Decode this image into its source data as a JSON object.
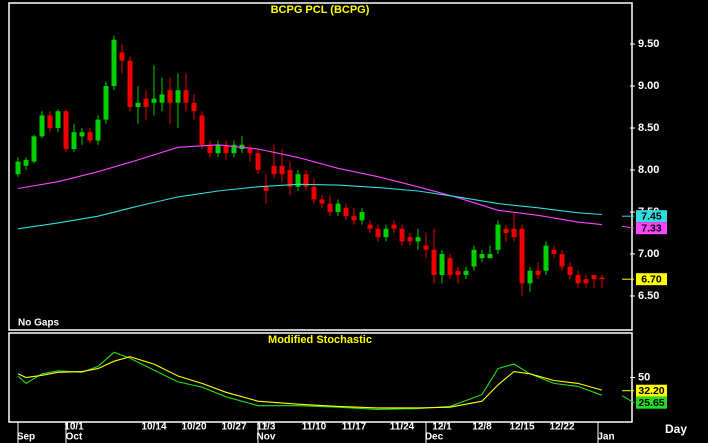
{
  "chart_data": [
    {
      "type": "candlestick",
      "title": "BCPG PCL (BCPG)",
      "note": "No Gaps",
      "x_label": "Day",
      "up_color": "#00d000",
      "down_color": "#ee0000",
      "open": [
        7.95,
        8.05,
        8.1,
        8.4,
        8.65,
        8.5,
        8.7,
        8.25,
        8.4,
        8.45,
        8.35,
        8.6,
        9.0,
        9.4,
        9.3,
        8.75,
        8.85,
        8.8,
        8.8,
        8.95,
        8.8,
        8.95,
        8.8,
        8.65,
        8.3,
        8.2,
        8.3,
        8.2,
        8.25,
        8.25,
        8.2,
        7.8,
        8.05,
        8.05,
        8.0,
        7.8,
        7.95,
        7.8,
        7.65,
        7.6,
        7.5,
        7.55,
        7.45,
        7.4,
        7.35,
        7.3,
        7.2,
        7.35,
        7.3,
        7.2,
        7.15,
        7.1,
        7.05,
        6.75,
        6.95,
        6.8,
        6.75,
        6.85,
        6.95,
        6.95,
        7.05,
        7.3,
        7.3,
        7.3,
        6.65,
        6.8,
        6.8,
        7.05,
        7.0,
        6.85,
        6.75,
        6.7,
        6.75,
        6.72
      ],
      "high": [
        8.15,
        8.15,
        8.42,
        8.7,
        8.7,
        8.72,
        8.72,
        8.55,
        8.5,
        8.5,
        8.65,
        9.05,
        9.6,
        9.5,
        9.35,
        9.0,
        8.95,
        9.25,
        9.1,
        9.1,
        9.15,
        9.15,
        8.9,
        8.7,
        8.35,
        8.35,
        8.35,
        8.35,
        8.4,
        8.3,
        8.25,
        7.95,
        8.3,
        8.25,
        8.1,
        8.0,
        8.0,
        7.9,
        7.7,
        7.7,
        7.65,
        7.6,
        7.55,
        7.55,
        7.4,
        7.35,
        7.35,
        7.4,
        7.35,
        7.25,
        7.3,
        7.25,
        7.3,
        7.05,
        7.0,
        6.85,
        6.85,
        7.1,
        7.05,
        7.1,
        7.4,
        7.35,
        7.5,
        7.35,
        6.85,
        6.9,
        7.15,
        7.1,
        7.05,
        6.9,
        6.8,
        6.75,
        6.75,
        6.75
      ],
      "low": [
        7.92,
        8.0,
        8.08,
        8.38,
        8.45,
        8.45,
        8.22,
        8.22,
        8.3,
        8.32,
        8.3,
        8.55,
        8.95,
        9.15,
        8.7,
        8.55,
        8.6,
        8.65,
        8.7,
        8.55,
        8.5,
        8.7,
        8.6,
        8.25,
        8.15,
        8.15,
        8.12,
        8.15,
        8.2,
        8.1,
        7.95,
        7.6,
        7.9,
        7.85,
        7.7,
        7.75,
        7.75,
        7.6,
        7.55,
        7.45,
        7.45,
        7.4,
        7.35,
        7.35,
        7.25,
        7.15,
        7.15,
        7.25,
        7.1,
        7.1,
        7.05,
        6.95,
        6.65,
        6.65,
        6.7,
        6.65,
        6.7,
        6.8,
        6.9,
        6.95,
        7.0,
        7.15,
        7.15,
        6.5,
        6.55,
        6.7,
        6.75,
        6.95,
        6.8,
        6.7,
        6.6,
        6.6,
        6.6,
        6.6
      ],
      "close": [
        8.1,
        8.12,
        8.4,
        8.65,
        8.5,
        8.7,
        8.25,
        8.45,
        8.45,
        8.35,
        8.6,
        9.0,
        9.55,
        9.3,
        8.75,
        8.8,
        8.75,
        8.85,
        8.9,
        8.8,
        8.95,
        8.8,
        8.7,
        8.3,
        8.2,
        8.3,
        8.2,
        8.3,
        8.3,
        8.2,
        8.0,
        7.75,
        7.95,
        7.95,
        7.8,
        7.95,
        7.8,
        7.65,
        7.6,
        7.5,
        7.6,
        7.45,
        7.4,
        7.5,
        7.3,
        7.2,
        7.3,
        7.3,
        7.15,
        7.15,
        7.2,
        7.05,
        6.75,
        7.0,
        6.75,
        6.75,
        6.8,
        7.05,
        7.0,
        7.0,
        7.35,
        7.25,
        7.2,
        6.65,
        6.8,
        6.75,
        7.1,
        7.0,
        6.85,
        6.75,
        6.65,
        6.65,
        6.7,
        6.7
      ],
      "close_label": {
        "value": 6.7,
        "label": "6.70"
      },
      "close_label_color": "#ffff00",
      "series": [
        {
          "color": "#ff44ff",
          "x": [
            0,
            5,
            10,
            15,
            20,
            25,
            30,
            35,
            40,
            45,
            50,
            55,
            60,
            65,
            70,
            73
          ],
          "values": [
            7.78,
            7.86,
            7.98,
            8.12,
            8.27,
            8.3,
            8.25,
            8.15,
            8.02,
            7.92,
            7.8,
            7.67,
            7.52,
            7.46,
            7.38,
            7.35
          ],
          "end_label": 7.33
        },
        {
          "color": "#33dddd",
          "x": [
            0,
            5,
            10,
            15,
            20,
            25,
            30,
            35,
            40,
            45,
            50,
            55,
            60,
            65,
            70,
            73
          ],
          "values": [
            7.3,
            7.37,
            7.45,
            7.57,
            7.68,
            7.75,
            7.8,
            7.83,
            7.82,
            7.79,
            7.75,
            7.68,
            7.6,
            7.55,
            7.49,
            7.47
          ],
          "end_label": 7.45
        }
      ],
      "xlim": [
        -1,
        76.5
      ],
      "ylim": [
        6.095,
        9.988
      ],
      "yticks": [
        {
          "value": 6.5,
          "label": "6.50"
        },
        {
          "value": 7,
          "label": "7.00"
        },
        {
          "value": 7.5,
          "label": "7.50"
        },
        {
          "value": 8,
          "label": "8.00"
        },
        {
          "value": 8.5,
          "label": "8.50"
        },
        {
          "value": 9,
          "label": "9.00"
        },
        {
          "value": 9.5,
          "label": "9.50"
        }
      ],
      "xticks": [
        {
          "value": 7,
          "label": "10/1"
        },
        {
          "value": 17,
          "label": "10/14"
        },
        {
          "value": 22,
          "label": "10/20"
        },
        {
          "value": 27,
          "label": "10/27"
        },
        {
          "value": 31,
          "label": "11/3"
        },
        {
          "value": 37,
          "label": "11/10"
        },
        {
          "value": 42,
          "label": "11/17"
        },
        {
          "value": 48,
          "label": "11/24"
        },
        {
          "value": 53,
          "label": "12/1"
        },
        {
          "value": 58,
          "label": "12/8"
        },
        {
          "value": 63,
          "label": "12/15"
        },
        {
          "value": 68,
          "label": "12/22"
        }
      ],
      "month_ticks": [
        {
          "value": 1,
          "label": "Sep"
        },
        {
          "value": 7,
          "label": "Oct"
        },
        {
          "value": 31,
          "label": "Nov"
        },
        {
          "value": 52,
          "label": "Dec"
        },
        {
          "value": 73.5,
          "label": "Jan"
        }
      ]
    },
    {
      "type": "line",
      "title": "Modified Stochastic",
      "series": [
        {
          "color": "#22dd22",
          "x": [
            0,
            1,
            3,
            5,
            8,
            10,
            12,
            14,
            17,
            20,
            23,
            26,
            30,
            35,
            40,
            45,
            50,
            54,
            58,
            60,
            62,
            64,
            67,
            70,
            73
          ],
          "values": [
            52,
            42,
            55,
            59,
            57,
            65,
            84,
            76,
            60,
            44,
            37,
            24,
            12,
            12,
            10,
            7,
            8,
            11,
            27,
            62,
            68,
            55,
            42,
            38,
            26
          ],
          "end_label": 25.65
        },
        {
          "color": "#ffff00",
          "x": [
            0,
            1,
            3,
            5,
            8,
            10,
            12,
            14,
            17,
            20,
            23,
            26,
            30,
            35,
            40,
            45,
            50,
            54,
            58,
            60,
            62,
            64,
            67,
            70,
            73
          ],
          "values": [
            55,
            50,
            53,
            57,
            58,
            62,
            72,
            78,
            68,
            52,
            42,
            30,
            18,
            14,
            11,
            9,
            9,
            10,
            18,
            40,
            58,
            55,
            46,
            42,
            33
          ],
          "end_label": {
            "value": 32.2,
            "label": "32.20"
          }
        }
      ],
      "xlim": [
        -1,
        76.5
      ],
      "ylim": [
        -10,
        110
      ],
      "yticks": [
        50
      ]
    }
  ]
}
